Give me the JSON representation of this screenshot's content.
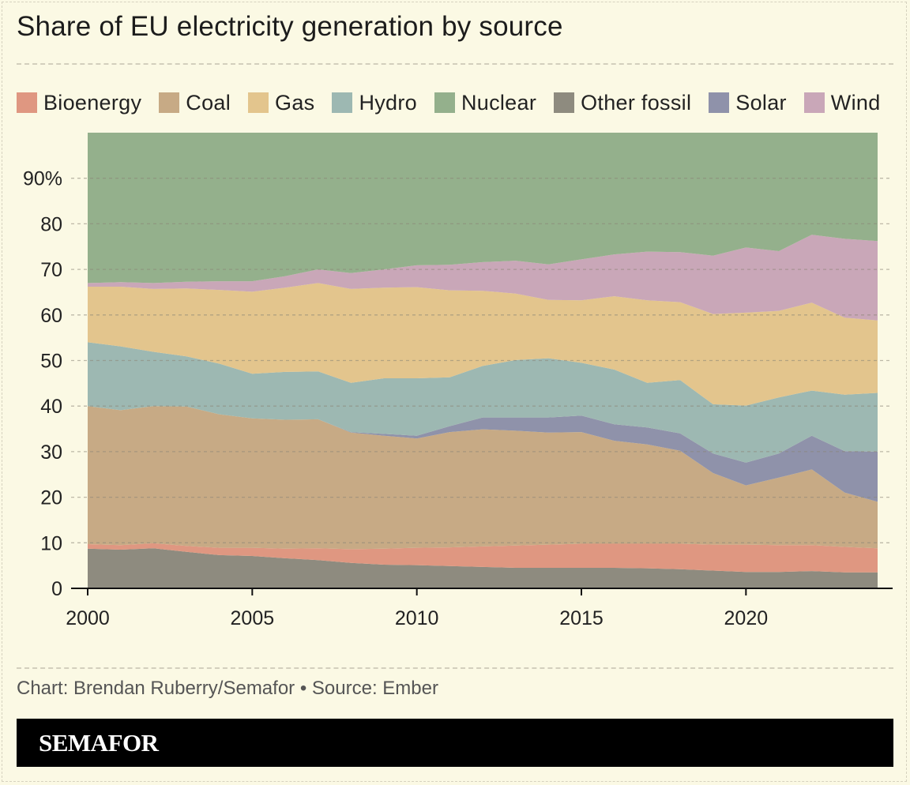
{
  "chart_data": {
    "type": "area",
    "stacked": true,
    "title": "Share of EU electricity generation by source",
    "xlabel": "",
    "ylabel": "",
    "ylim": [
      0,
      100
    ],
    "xlim": [
      2000,
      2024
    ],
    "x_ticks": [
      2000,
      2005,
      2010,
      2015,
      2020
    ],
    "y_ticks": [
      0,
      10,
      20,
      30,
      40,
      50,
      60,
      70,
      80,
      90
    ],
    "y_tick_labels": [
      "0",
      "10",
      "20",
      "30",
      "40",
      "50",
      "60",
      "70",
      "80",
      "90%"
    ],
    "x": [
      2000,
      2001,
      2002,
      2003,
      2004,
      2005,
      2006,
      2007,
      2008,
      2009,
      2010,
      2011,
      2012,
      2013,
      2014,
      2015,
      2016,
      2017,
      2018,
      2019,
      2020,
      2021,
      2022,
      2023,
      2024
    ],
    "stack_order": [
      "Other fossil",
      "Bioenergy",
      "Coal",
      "Solar",
      "Hydro",
      "Gas",
      "Wind",
      "Nuclear"
    ],
    "series": [
      {
        "name": "Other fossil",
        "color": "#8e8b7f",
        "values": [
          8.7,
          8.5,
          8.8,
          8.0,
          7.3,
          7.1,
          6.6,
          6.2,
          5.6,
          5.2,
          5.1,
          4.9,
          4.7,
          4.5,
          4.5,
          4.5,
          4.5,
          4.4,
          4.2,
          3.9,
          3.6,
          3.6,
          3.8,
          3.5,
          3.5
        ]
      },
      {
        "name": "Bioenergy",
        "color": "#df9781",
        "values": [
          1.0,
          1.0,
          1.1,
          1.3,
          1.6,
          1.8,
          2.1,
          2.6,
          3.0,
          3.5,
          3.8,
          4.1,
          4.5,
          4.9,
          5.1,
          5.3,
          5.3,
          5.4,
          5.6,
          5.7,
          6.0,
          5.9,
          5.7,
          5.6,
          5.3
        ]
      },
      {
        "name": "Coal",
        "color": "#c7aa85",
        "values": [
          30.3,
          29.6,
          30.1,
          30.6,
          29.3,
          28.4,
          28.3,
          28.3,
          25.6,
          24.8,
          24.0,
          25.3,
          25.7,
          25.2,
          24.6,
          24.5,
          22.6,
          21.8,
          20.4,
          15.7,
          13.0,
          14.8,
          16.6,
          11.9,
          10.2
        ]
      },
      {
        "name": "Solar",
        "color": "#8f92aa",
        "values": [
          0,
          0,
          0,
          0,
          0,
          0,
          0,
          0,
          0.1,
          0.4,
          0.6,
          1.3,
          2.6,
          2.9,
          3.3,
          3.6,
          3.6,
          3.7,
          3.8,
          4.3,
          5.0,
          5.3,
          7.4,
          9.1,
          11.0
        ]
      },
      {
        "name": "Hydro",
        "color": "#9db8b2",
        "values": [
          14.0,
          14.0,
          11.9,
          11.0,
          11.1,
          9.8,
          10.5,
          10.5,
          10.8,
          12.2,
          12.6,
          10.7,
          11.3,
          12.6,
          13.0,
          11.6,
          12.0,
          9.8,
          11.7,
          10.8,
          12.5,
          12.3,
          9.9,
          12.4,
          12.9
        ]
      },
      {
        "name": "Gas",
        "color": "#e3c58d",
        "values": [
          12.2,
          13.1,
          13.8,
          14.9,
          16.2,
          18.0,
          18.5,
          19.4,
          20.6,
          19.9,
          20.0,
          19.1,
          16.5,
          14.6,
          12.8,
          13.7,
          16.1,
          18.1,
          17.1,
          19.8,
          20.4,
          19.0,
          19.3,
          16.9,
          15.9
        ]
      },
      {
        "name": "Wind",
        "color": "#c9a7b8",
        "values": [
          0.8,
          1.0,
          1.3,
          1.5,
          1.9,
          2.3,
          2.5,
          3.0,
          3.5,
          4.0,
          4.8,
          5.6,
          6.3,
          7.2,
          7.8,
          9.0,
          9.2,
          10.7,
          11.0,
          12.8,
          14.3,
          13.1,
          14.9,
          17.3,
          17.4
        ]
      },
      {
        "name": "Nuclear",
        "color": "#94b08c",
        "values": [
          33.0,
          32.8,
          33.0,
          32.7,
          32.6,
          32.6,
          31.5,
          30.0,
          30.8,
          30.0,
          29.1,
          29.0,
          28.4,
          28.1,
          28.9,
          27.8,
          26.7,
          26.1,
          26.2,
          27.0,
          25.2,
          26.0,
          22.4,
          23.3,
          23.8
        ]
      }
    ]
  },
  "legend_order": [
    "Bioenergy",
    "Coal",
    "Gas",
    "Hydro",
    "Nuclear",
    "Other fossil",
    "Solar",
    "Wind"
  ],
  "source": "Chart: Brendan Ruberry/Semafor • Source: Ember",
  "brand": "SEMAFOR"
}
